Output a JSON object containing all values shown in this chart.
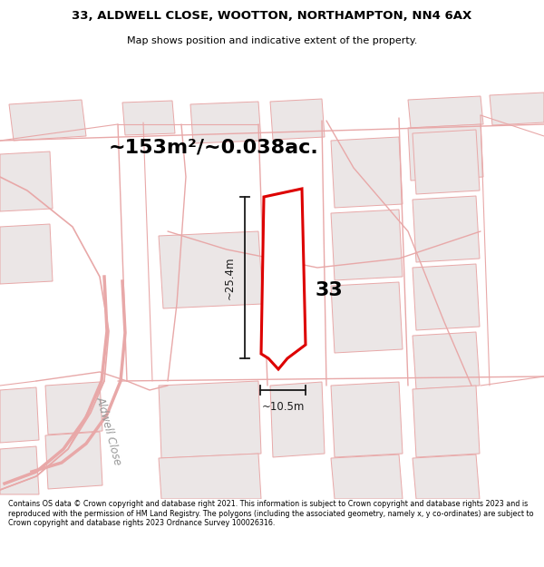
{
  "title_line1": "33, ALDWELL CLOSE, WOOTTON, NORTHAMPTON, NN4 6AX",
  "title_line2": "Map shows position and indicative extent of the property.",
  "area_text": "~153m²/~0.038ac.",
  "plot_number": "33",
  "dim_vertical": "~25.4m",
  "dim_horizontal": "~10.5m",
  "street_label": "Aldwell Close",
  "footer_text": "Contains OS data © Crown copyright and database right 2021. This information is subject to Crown copyright and database rights 2023 and is reproduced with the permission of HM Land Registry. The polygons (including the associated geometry, namely x, y co-ordinates) are subject to Crown copyright and database rights 2023 Ordnance Survey 100026316.",
  "map_bg": "#f7f4f4",
  "plot_color": "#dd0000",
  "road_color": "#e8a8a8",
  "building_fill": "#ebe6e6",
  "building_light": "#f0ecec",
  "road_line_color": "#e8a8a8",
  "title_bg": "#ffffff",
  "footer_bg": "#ffffff",
  "dim_color": "#1a1a1a",
  "label_color": "#999999"
}
